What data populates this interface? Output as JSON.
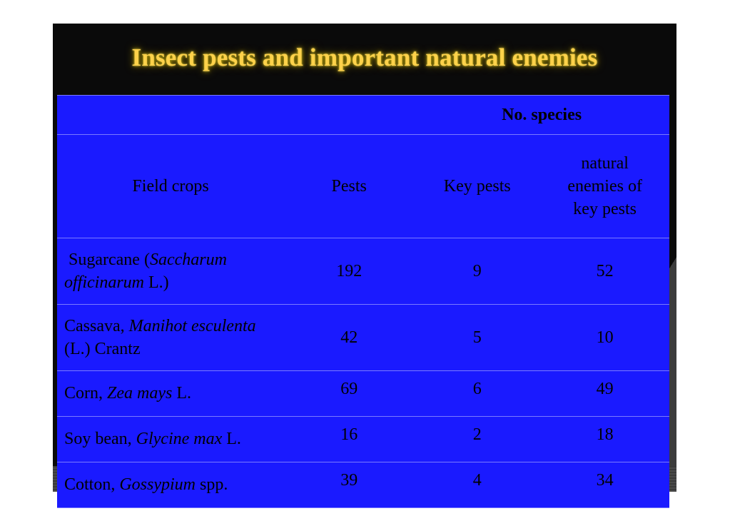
{
  "title": "Insect pests and  important natural enemies",
  "table": {
    "group_header": "No. species",
    "headers": {
      "field_crops": "Field crops",
      "pests": "Pests",
      "key_pests": "Key pests",
      "natural_enemies": [
        "natural",
        "enemies of",
        "key pests"
      ]
    },
    "rows": [
      {
        "crop_prefix": " Sugarcane (",
        "crop_italic": "Saccharum officinarum",
        "crop_suffix": " L.)",
        "pests": "192",
        "key_pests": "9",
        "natural_enemies": "52"
      },
      {
        "crop_prefix": "Cassava, ",
        "crop_italic": "Manihot esculenta",
        "crop_suffix": " (L.) Crantz",
        "pests": "42",
        "key_pests": "5",
        "natural_enemies": "10"
      },
      {
        "crop_prefix": "Corn, ",
        "crop_italic": "Zea mays",
        "crop_suffix": " L.",
        "pests": "69",
        "key_pests": "6",
        "natural_enemies": "49"
      },
      {
        "crop_prefix": "Soy bean, ",
        "crop_italic": "Glycine max",
        "crop_suffix": " L.",
        "pests": "16",
        "key_pests": "2",
        "natural_enemies": "18"
      },
      {
        "crop_prefix": "Cotton, ",
        "crop_italic": "Gossypium",
        "crop_suffix": " spp.",
        "pests": "39",
        "key_pests": "4",
        "natural_enemies": "34"
      }
    ]
  },
  "colors": {
    "slide_background": "#0a0a0a",
    "table_background": "#1a1aff",
    "title_color": "#ffd24a"
  }
}
